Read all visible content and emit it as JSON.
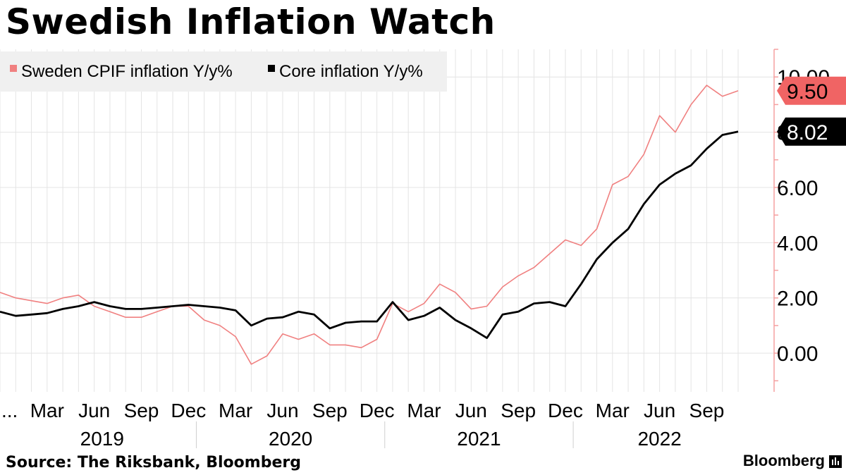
{
  "header": {
    "title": "Swedish Inflation Watch"
  },
  "footer": {
    "source": "Source: The Riksbank, Bloomberg",
    "brand": "Bloomberg",
    "brand_icon": "bloomberg-terminal-icon"
  },
  "chart_data": {
    "type": "line",
    "title": "Swedish Inflation Watch",
    "x_start_label": "...",
    "x_tick_labels": [
      "Mar",
      "Jun",
      "Sep",
      "Dec",
      "Mar",
      "Jun",
      "Sep",
      "Dec",
      "Mar",
      "Jun",
      "Sep",
      "Dec",
      "Mar",
      "Jun",
      "Sep"
    ],
    "x_year_labels": [
      "2019",
      "2020",
      "2021",
      "2022"
    ],
    "x": [
      "2018-12",
      "2019-01",
      "2019-02",
      "2019-03",
      "2019-04",
      "2019-05",
      "2019-06",
      "2019-07",
      "2019-08",
      "2019-09",
      "2019-10",
      "2019-11",
      "2019-12",
      "2020-01",
      "2020-02",
      "2020-03",
      "2020-04",
      "2020-05",
      "2020-06",
      "2020-07",
      "2020-08",
      "2020-09",
      "2020-10",
      "2020-11",
      "2020-12",
      "2021-01",
      "2021-02",
      "2021-03",
      "2021-04",
      "2021-05",
      "2021-06",
      "2021-07",
      "2021-08",
      "2021-09",
      "2021-10",
      "2021-11",
      "2021-12",
      "2022-01",
      "2022-02",
      "2022-03",
      "2022-04",
      "2022-05",
      "2022-06",
      "2022-07",
      "2022-08",
      "2022-09",
      "2022-10",
      "2022-11"
    ],
    "y_ticks": [
      "0.00",
      "2.00",
      "4.00",
      "6.00",
      "8.00",
      "10.00"
    ],
    "ylim": [
      -1.4,
      11.0
    ],
    "grid": true,
    "legend_position": "top-left",
    "series": [
      {
        "name": "Sweden CPIF inflation Y/y%",
        "color": "#f08080",
        "last_value_label": "9.50",
        "values": [
          2.2,
          2.0,
          1.9,
          1.8,
          2.0,
          2.1,
          1.7,
          1.5,
          1.3,
          1.3,
          1.5,
          1.7,
          1.7,
          1.2,
          1.0,
          0.6,
          -0.4,
          -0.1,
          0.7,
          0.5,
          0.7,
          0.3,
          0.3,
          0.2,
          0.5,
          1.8,
          1.5,
          1.8,
          2.5,
          2.2,
          1.6,
          1.7,
          2.4,
          2.8,
          3.1,
          3.6,
          4.1,
          3.9,
          4.5,
          6.1,
          6.4,
          7.2,
          8.6,
          8.0,
          9.0,
          9.7,
          9.3,
          9.5
        ]
      },
      {
        "name": "Core inflation Y/y%",
        "color": "#000000",
        "last_value_label": "8.02",
        "values": [
          1.5,
          1.35,
          1.4,
          1.45,
          1.6,
          1.7,
          1.85,
          1.7,
          1.6,
          1.6,
          1.65,
          1.7,
          1.75,
          1.7,
          1.65,
          1.55,
          1.0,
          1.25,
          1.3,
          1.5,
          1.4,
          0.9,
          1.1,
          1.15,
          1.15,
          1.85,
          1.2,
          1.35,
          1.65,
          1.2,
          0.9,
          0.55,
          1.4,
          1.5,
          1.8,
          1.85,
          1.7,
          2.5,
          3.4,
          4.0,
          4.5,
          5.4,
          6.1,
          6.5,
          6.8,
          7.4,
          7.9,
          8.02
        ]
      }
    ]
  }
}
